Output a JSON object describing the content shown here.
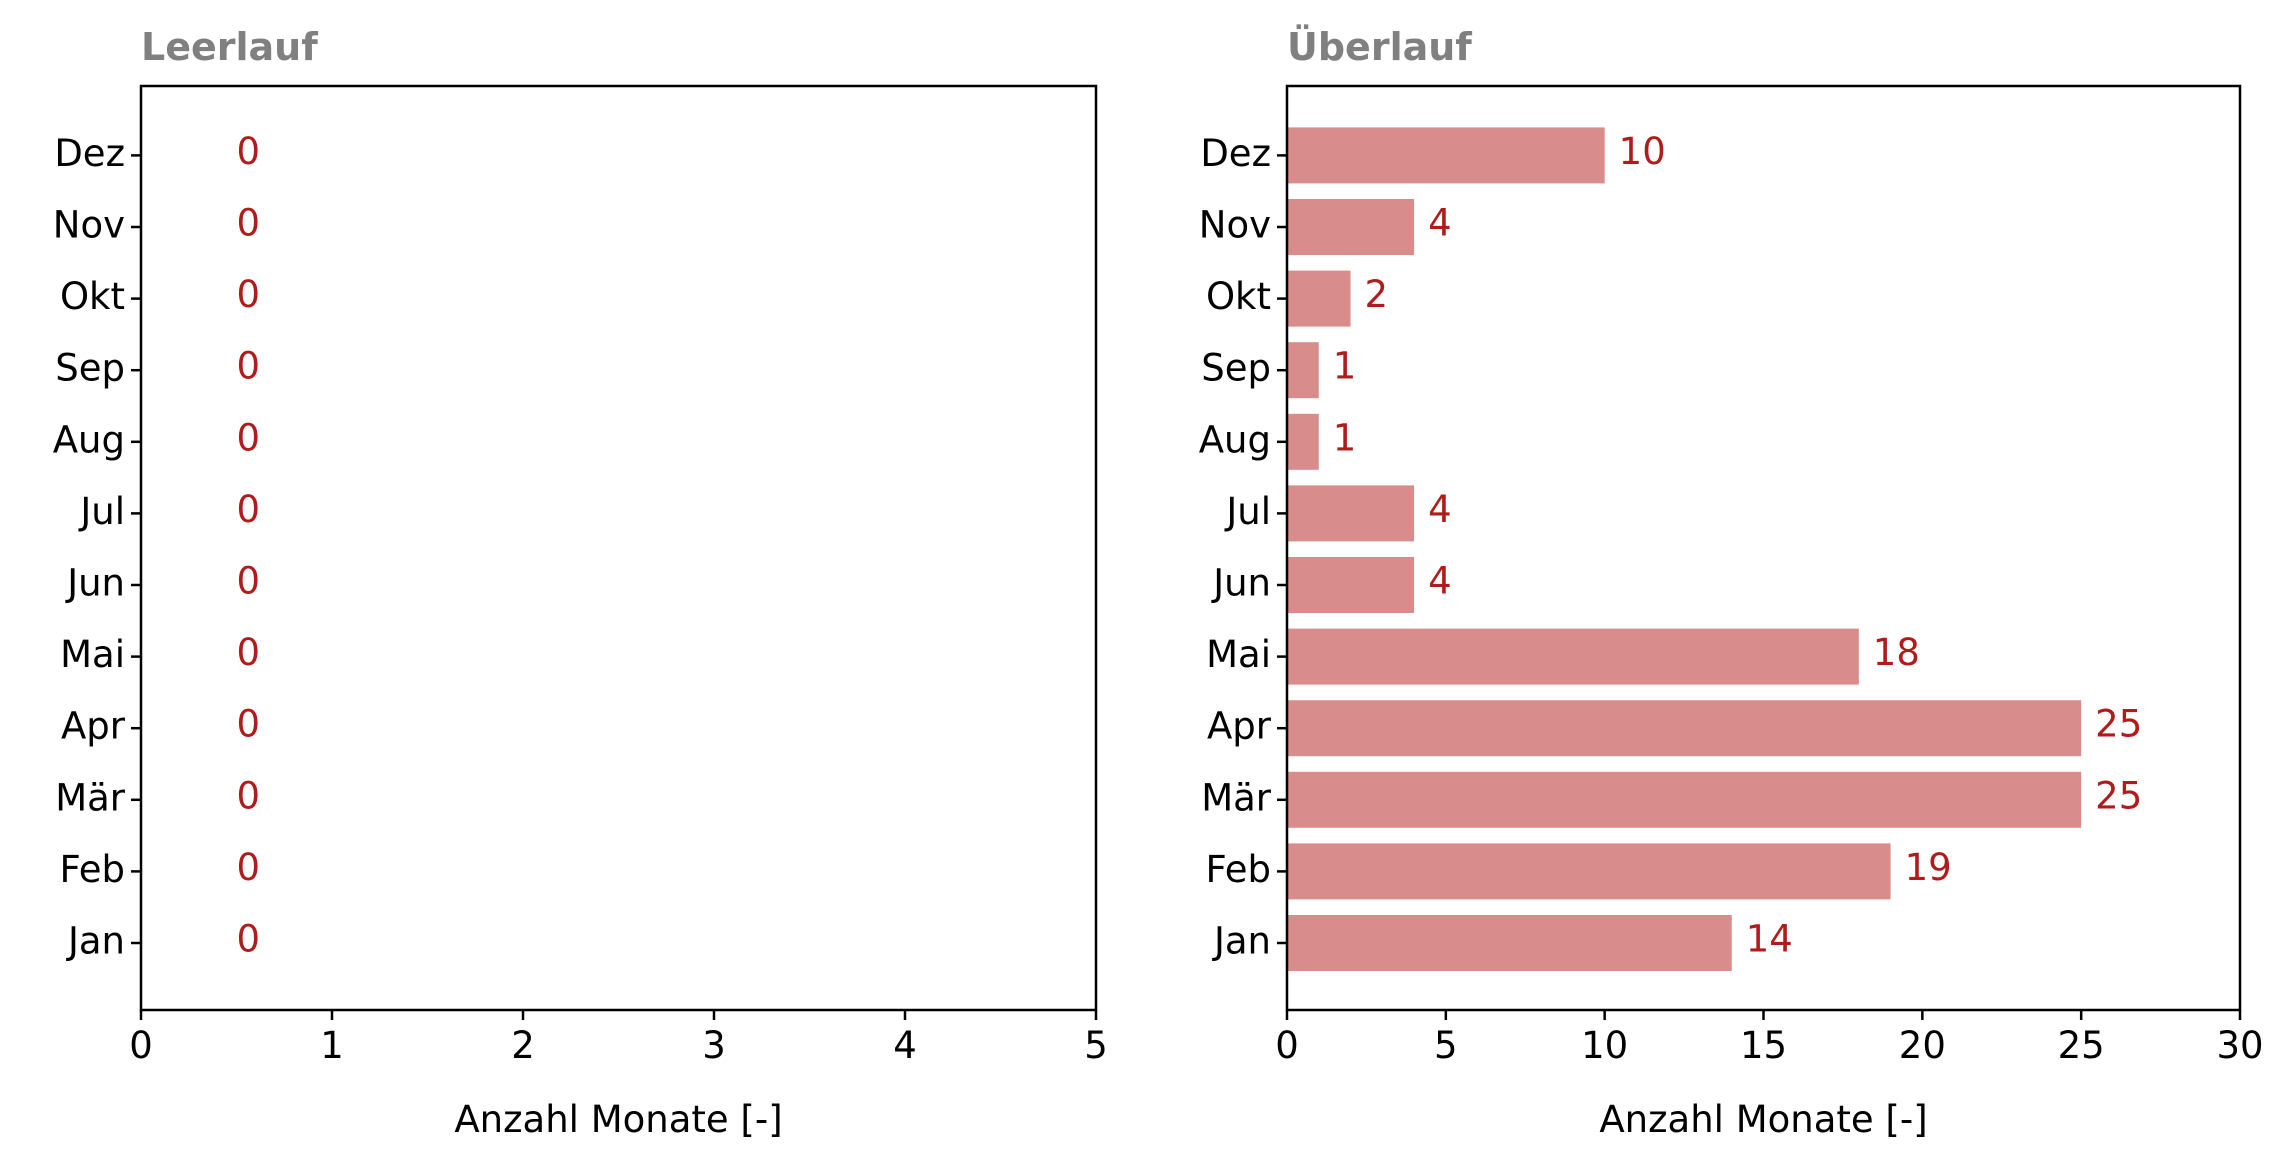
{
  "colors": {
    "bar": "#d98c8c",
    "value_label": "#b01c1c",
    "title": "#808080",
    "axis": "#000000"
  },
  "chart_data": [
    {
      "type": "bar",
      "orientation": "horizontal",
      "title": "Leerlauf",
      "xlabel": "Anzahl Monate [-]",
      "ylabel": "",
      "categories": [
        "Jan",
        "Feb",
        "Mär",
        "Apr",
        "Mai",
        "Jun",
        "Jul",
        "Aug",
        "Sep",
        "Okt",
        "Nov",
        "Dez"
      ],
      "values": [
        0,
        0,
        0,
        0,
        0,
        0,
        0,
        0,
        0,
        0,
        0,
        0
      ],
      "value_labels": [
        "0",
        "0",
        "0",
        "0",
        "0",
        "0",
        "0",
        "0",
        "0",
        "0",
        "0",
        "0"
      ],
      "xlim": [
        0,
        5
      ],
      "xticks": [
        "0",
        "1",
        "2",
        "3",
        "4",
        "5"
      ],
      "grid": false
    },
    {
      "type": "bar",
      "orientation": "horizontal",
      "title": "Überlauf",
      "xlabel": "Anzahl Monate [-]",
      "ylabel": "",
      "categories": [
        "Jan",
        "Feb",
        "Mär",
        "Apr",
        "Mai",
        "Jun",
        "Jul",
        "Aug",
        "Sep",
        "Okt",
        "Nov",
        "Dez"
      ],
      "values": [
        14,
        19,
        25,
        25,
        18,
        4,
        4,
        1,
        1,
        2,
        4,
        10
      ],
      "value_labels": [
        "14",
        "19",
        "25",
        "25",
        "18",
        "4",
        "4",
        "1",
        "1",
        "2",
        "4",
        "10"
      ],
      "xlim": [
        0,
        30
      ],
      "xticks": [
        "0",
        "5",
        "10",
        "15",
        "20",
        "25",
        "30"
      ],
      "grid": false
    }
  ]
}
